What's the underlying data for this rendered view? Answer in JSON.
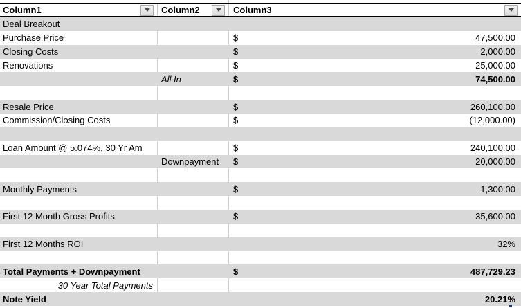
{
  "table": {
    "columns": [
      {
        "label": "Column1"
      },
      {
        "label": "Column2"
      },
      {
        "label": "Column3"
      }
    ],
    "rows": [
      {
        "c1": "Deal Breakout",
        "c2": "",
        "dollar": "",
        "value": ""
      },
      {
        "c1": "Purchase Price",
        "c2": "",
        "dollar": "$",
        "value": "47,500.00"
      },
      {
        "c1": "Closing Costs",
        "c2": "",
        "dollar": "$",
        "value": "2,000.00"
      },
      {
        "c1": "Renovations",
        "c2": "",
        "dollar": "$",
        "value": "25,000.00"
      },
      {
        "c1": "",
        "c2": "All In",
        "c2Class": "italic",
        "dollar": "$",
        "dollarClass": "bold",
        "value": "74,500.00",
        "valueClass": "bold"
      },
      {
        "c1": "",
        "c2": "",
        "dollar": "",
        "value": ""
      },
      {
        "c1": "Resale Price",
        "c2": "",
        "dollar": "$",
        "value": "260,100.00"
      },
      {
        "c1": "Commission/Closing Costs",
        "c2": "",
        "dollar": "$",
        "value": "(12,000.00)"
      },
      {
        "c1": "",
        "c2": "",
        "dollar": "",
        "value": ""
      },
      {
        "c1": "Loan Amount @ 5.074%, 30 Yr Am",
        "c2": "",
        "dollar": "$",
        "value": "240,100.00"
      },
      {
        "c1": "",
        "c2": "Downpayment",
        "dollar": "$",
        "value": "20,000.00"
      },
      {
        "c1": "",
        "c2": "",
        "dollar": "",
        "value": ""
      },
      {
        "c1": "Monthly Payments",
        "c2": "",
        "dollar": "$",
        "value": "1,300.00"
      },
      {
        "c1": "",
        "c2": "",
        "dollar": "",
        "value": ""
      },
      {
        "c1": "First 12 Month Gross Profits",
        "c2": "",
        "dollar": "$",
        "value": "35,600.00"
      },
      {
        "c1": "",
        "c2": "",
        "dollar": "",
        "value": ""
      },
      {
        "c1": "First 12 Months ROI",
        "c2": "",
        "dollar": "",
        "value": "32%"
      },
      {
        "c1": "",
        "c2": "",
        "dollar": "",
        "value": ""
      },
      {
        "c1": "Total Payments + Downpayment",
        "c1Class": "bold",
        "c2": "",
        "dollar": "$",
        "dollarClass": "bold",
        "value": "487,729.23",
        "valueClass": "bold"
      },
      {
        "c1": "30 Year Total Payments",
        "c1Class": "italic right",
        "c2": "",
        "dollar": "",
        "value": ""
      },
      {
        "c1": "Note Yield",
        "c1Class": "bold",
        "c2": "",
        "dollar": "",
        "value": "20.21%",
        "valueClass": "bold"
      }
    ]
  },
  "icons": {
    "filter": "filter-dropdown-arrow-icon"
  },
  "colors": {
    "band_gray": "#d9d9d9",
    "gridline": "#d0d0d0",
    "header_border": "#000000",
    "selection_mark_blue": "#1f3864"
  }
}
